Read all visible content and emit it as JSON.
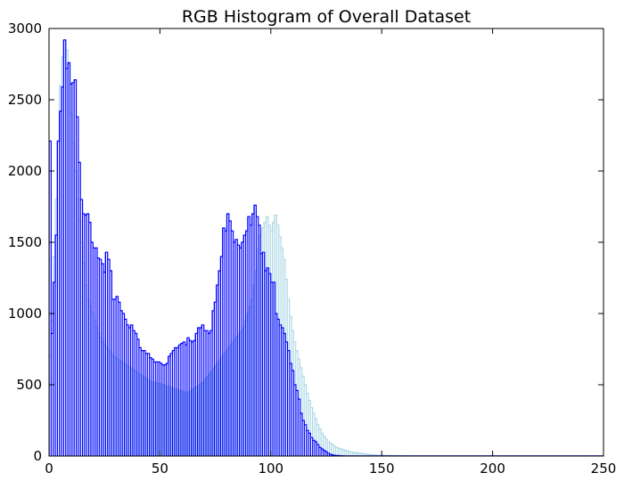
{
  "chart_data": {
    "type": "bar",
    "title": "RGB Histogram of Overall Dataset",
    "xlabel": "",
    "ylabel": "",
    "xlim": [
      0,
      250
    ],
    "ylim": [
      0,
      3000
    ],
    "x_ticks": [
      0,
      50,
      100,
      150,
      200,
      250
    ],
    "y_ticks": [
      0,
      500,
      1000,
      1500,
      2000,
      2500,
      3000
    ],
    "grid": false,
    "legend": "none",
    "series": [
      {
        "color": "#add8e6",
        "style": "step",
        "values": [
          700,
          950,
          1400,
          1800,
          2200,
          2600,
          2800,
          2920,
          2850,
          2750,
          2400,
          2200,
          2000,
          1800,
          1650,
          1500,
          1350,
          1200,
          1100,
          1050,
          1000,
          950,
          900,
          860,
          830,
          800,
          780,
          760,
          740,
          720,
          700,
          690,
          680,
          670,
          660,
          650,
          640,
          630,
          620,
          610,
          600,
          590,
          580,
          570,
          560,
          550,
          540,
          530,
          520,
          520,
          520,
          510,
          510,
          500,
          500,
          490,
          490,
          480,
          480,
          470,
          470,
          460,
          460,
          450,
          450,
          440,
          450,
          460,
          470,
          480,
          490,
          500,
          510,
          520,
          540,
          560,
          580,
          600,
          620,
          640,
          660,
          680,
          700,
          720,
          740,
          760,
          780,
          800,
          820,
          840,
          860,
          880,
          900,
          950,
          1000,
          1050,
          1100,
          1200,
          1300,
          1450,
          1550,
          1600,
          1640,
          1680,
          1620,
          1580,
          1640,
          1690,
          1620,
          1540,
          1460,
          1380,
          1240,
          1100,
          980,
          880,
          800,
          740,
          680,
          620,
          560,
          500,
          440,
          390,
          340,
          300,
          260,
          220,
          190,
          160,
          140,
          120,
          100,
          90,
          80,
          70,
          60,
          55,
          50,
          45,
          40,
          35,
          30,
          28,
          26,
          24,
          22,
          20,
          18,
          16,
          14,
          12,
          10,
          9,
          8,
          7,
          6,
          6,
          5,
          5,
          4,
          4,
          3,
          3,
          3,
          2,
          2,
          2,
          2,
          2,
          1,
          1,
          1,
          1,
          1,
          1,
          1,
          1,
          1,
          1,
          1,
          1,
          1,
          1,
          1,
          1,
          1,
          1,
          1,
          1,
          1,
          1,
          1,
          1,
          1,
          1,
          1,
          1,
          1,
          1,
          1,
          1,
          1,
          1,
          1,
          1,
          1,
          1,
          1,
          1,
          1,
          1,
          1,
          1,
          1,
          1,
          1,
          1,
          1,
          1,
          1,
          1,
          1,
          1,
          1,
          1,
          1,
          1,
          1,
          1,
          1,
          1,
          1,
          1,
          1,
          1,
          1,
          1,
          1,
          1,
          1,
          1,
          1,
          1,
          1,
          1,
          1,
          1,
          1,
          1,
          1,
          1,
          1,
          1,
          1,
          1,
          1,
          1,
          1,
          1,
          1,
          1,
          1
        ]
      },
      {
        "color": "#0000ff",
        "style": "step",
        "values": [
          2210,
          860,
          1220,
          1550,
          2210,
          2420,
          2590,
          2920,
          2720,
          2760,
          2610,
          2620,
          2640,
          2380,
          2060,
          1800,
          1700,
          1690,
          1700,
          1640,
          1500,
          1460,
          1460,
          1390,
          1380,
          1350,
          1290,
          1430,
          1380,
          1300,
          1100,
          1100,
          1120,
          1080,
          1020,
          1000,
          960,
          920,
          900,
          920,
          880,
          860,
          820,
          760,
          740,
          740,
          720,
          720,
          690,
          680,
          660,
          660,
          660,
          650,
          640,
          640,
          650,
          700,
          720,
          740,
          760,
          760,
          780,
          790,
          800,
          780,
          830,
          810,
          800,
          810,
          860,
          900,
          900,
          920,
          880,
          880,
          860,
          880,
          1020,
          1080,
          1200,
          1300,
          1400,
          1600,
          1580,
          1700,
          1650,
          1580,
          1500,
          1520,
          1480,
          1460,
          1500,
          1550,
          1580,
          1680,
          1620,
          1700,
          1760,
          1680,
          1620,
          1420,
          1430,
          1300,
          1320,
          1280,
          1220,
          1220,
          1000,
          960,
          920,
          900,
          860,
          800,
          740,
          650,
          600,
          500,
          460,
          400,
          300,
          250,
          220,
          180,
          160,
          130,
          110,
          100,
          80,
          60,
          50,
          40,
          30,
          20,
          12,
          8,
          5,
          4,
          3,
          2,
          2,
          1,
          1,
          1,
          1,
          1,
          1,
          1,
          1,
          1,
          1,
          1,
          1,
          1,
          1,
          1,
          1,
          1,
          1,
          1,
          1,
          1,
          1,
          1,
          1,
          1,
          1,
          1,
          1,
          1,
          1,
          1,
          1,
          1,
          1,
          1,
          1,
          1,
          1,
          1,
          1,
          1,
          1,
          1,
          1,
          1,
          1,
          1,
          1,
          1,
          1,
          1,
          1,
          1,
          1,
          1,
          1,
          1,
          1,
          1,
          1,
          1,
          1,
          1,
          1,
          1,
          1,
          1,
          1,
          1,
          1,
          1,
          1,
          1,
          1,
          1,
          1,
          1,
          1,
          1,
          1,
          1,
          1,
          1,
          1,
          1,
          1,
          1,
          1,
          1,
          1,
          1,
          1,
          1,
          1,
          1,
          1,
          1,
          1,
          1,
          1,
          1,
          1,
          1,
          1,
          1,
          1,
          1,
          1,
          1,
          1,
          1,
          1,
          1,
          1,
          1,
          1,
          1,
          1,
          1,
          1,
          1,
          1,
          1,
          1
        ]
      }
    ]
  }
}
